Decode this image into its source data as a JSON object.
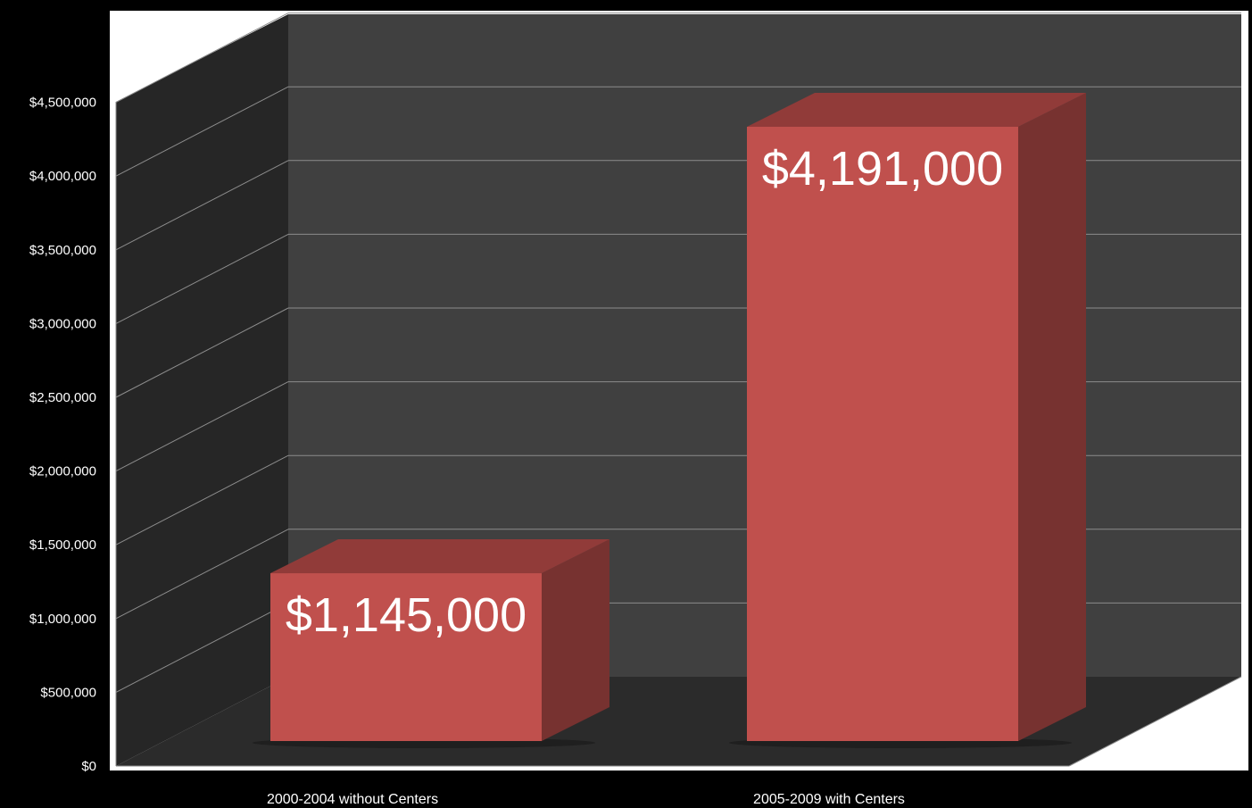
{
  "chart_data": {
    "type": "bar",
    "categories": [
      "2000-2004 without Centers",
      "2005-2009 with Centers"
    ],
    "values": [
      1145000,
      4191000
    ],
    "data_labels": [
      "$1,145,000",
      "$4,191,000"
    ],
    "y_ticks": [
      "$0",
      "$500,000",
      "$1,000,000",
      "$1,500,000",
      "$2,000,000",
      "$2,500,000",
      "$3,000,000",
      "$3,500,000",
      "$4,000,000",
      "$4,500,000"
    ],
    "ylim": [
      0,
      4500000
    ],
    "title": "",
    "xlabel": "",
    "ylabel": "",
    "grid": true,
    "legend": "none",
    "three_d": true,
    "colors": {
      "background": "#000000",
      "plot_area": "#ffffff",
      "back_wall": "#404040",
      "side_wall": "#262626",
      "floor": "#2b2b2b",
      "gridline": "#8c8c8c",
      "bar_front": "#c0504d",
      "bar_top": "#913b39",
      "bar_side": "#773230"
    }
  }
}
